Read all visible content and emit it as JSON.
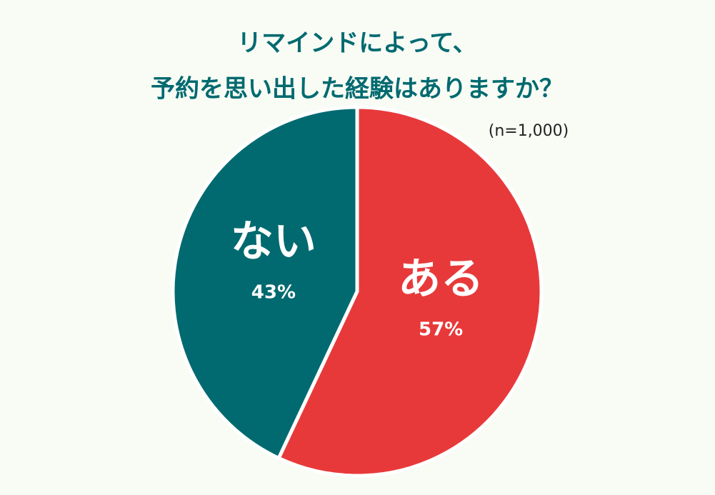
{
  "chart_data": {
    "type": "pie",
    "title": [
      "リマインドによって、",
      "予約を思い出した経験はありますか？"
    ],
    "subtitle": "(n=1,000)",
    "categories": [
      "ある",
      "ない"
    ],
    "values": [
      57,
      43
    ],
    "value_labels": [
      "57%",
      "43%"
    ],
    "colors": [
      "#e8393a",
      "#006a70"
    ]
  }
}
